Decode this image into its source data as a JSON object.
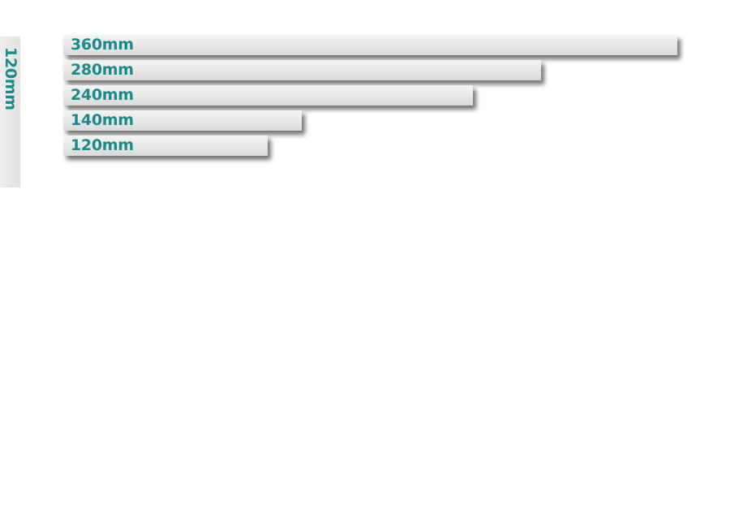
{
  "colors": {
    "label_text": "#1a8a8a",
    "bar_fill": "#e6e6e6",
    "background": "#ffffff"
  },
  "side_tab": {
    "label": "120mm"
  },
  "chart_data": {
    "type": "bar",
    "orientation": "horizontal",
    "unit": "mm",
    "categories": [
      "360mm",
      "280mm",
      "240mm",
      "140mm",
      "120mm"
    ],
    "values": [
      360,
      280,
      240,
      140,
      120
    ],
    "xlim": [
      0,
      360
    ],
    "grid": false,
    "legend": "none",
    "title": "",
    "xlabel": "",
    "ylabel": ""
  }
}
